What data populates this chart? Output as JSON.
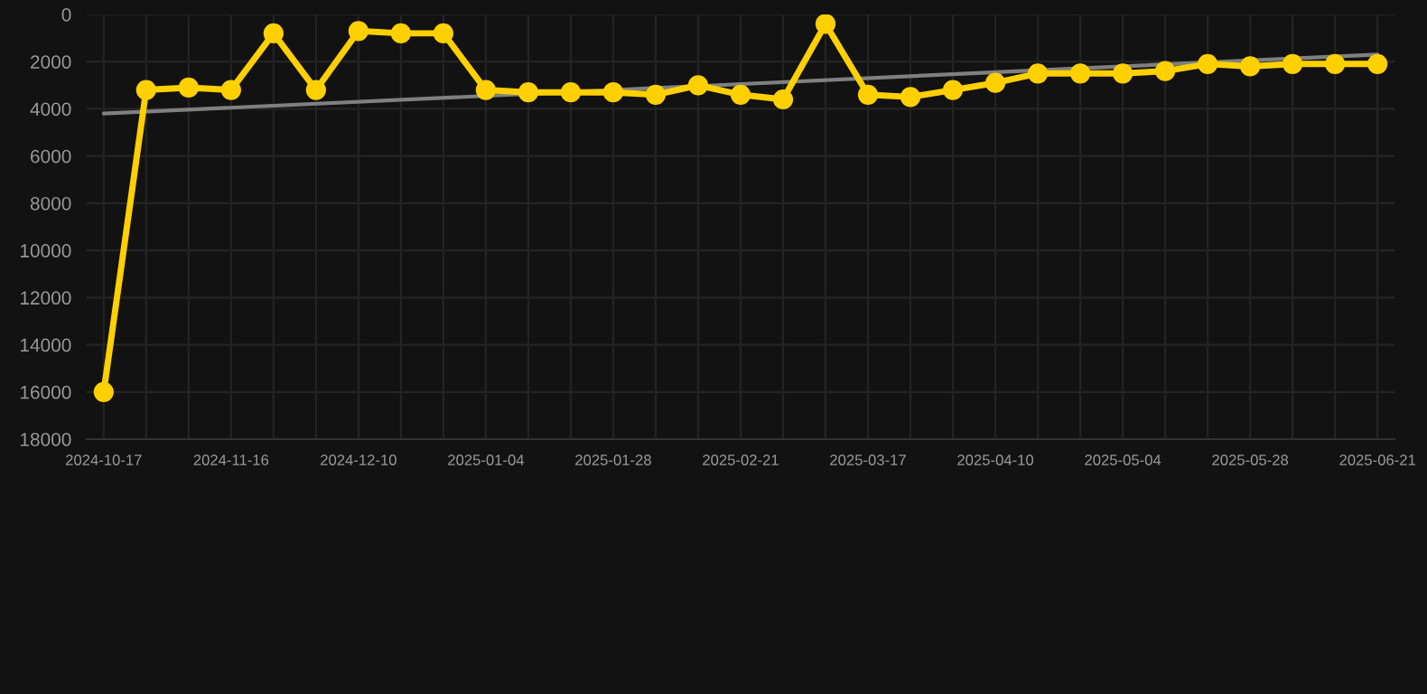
{
  "chart_data": {
    "type": "line",
    "categories": [
      "2024-10-17",
      null,
      null,
      "2024-11-16",
      null,
      null,
      "2024-12-10",
      null,
      null,
      "2025-01-04",
      null,
      null,
      "2025-01-28",
      null,
      null,
      "2025-02-21",
      null,
      null,
      "2025-03-17",
      null,
      null,
      "2025-04-10",
      null,
      null,
      "2025-05-04",
      null,
      null,
      "2025-05-28",
      null,
      null,
      "2025-06-21"
    ],
    "series": [
      {
        "color": "#808080",
        "marker": "none",
        "values": [
          4200,
          null,
          null,
          null,
          null,
          null,
          null,
          null,
          null,
          null,
          null,
          null,
          null,
          null,
          null,
          null,
          null,
          null,
          null,
          null,
          null,
          null,
          null,
          null,
          null,
          null,
          null,
          null,
          null,
          null,
          1700
        ]
      },
      {
        "color": "#ffd000",
        "marker": "circle",
        "values": [
          16000,
          3200,
          3100,
          3200,
          800,
          3200,
          700,
          800,
          800,
          3200,
          3300,
          3300,
          3300,
          3400,
          3000,
          3400,
          3600,
          400,
          3400,
          3500,
          3200,
          2900,
          2500,
          2500,
          2500,
          2400,
          2100,
          2200,
          2100,
          2100,
          2100
        ]
      }
    ],
    "ylim": [
      18000,
      0
    ],
    "yticks": [
      0,
      2000,
      4000,
      6000,
      8000,
      10000,
      12000,
      14000,
      16000,
      18000
    ],
    "grid": true,
    "legend": false,
    "line_style": "solid"
  }
}
